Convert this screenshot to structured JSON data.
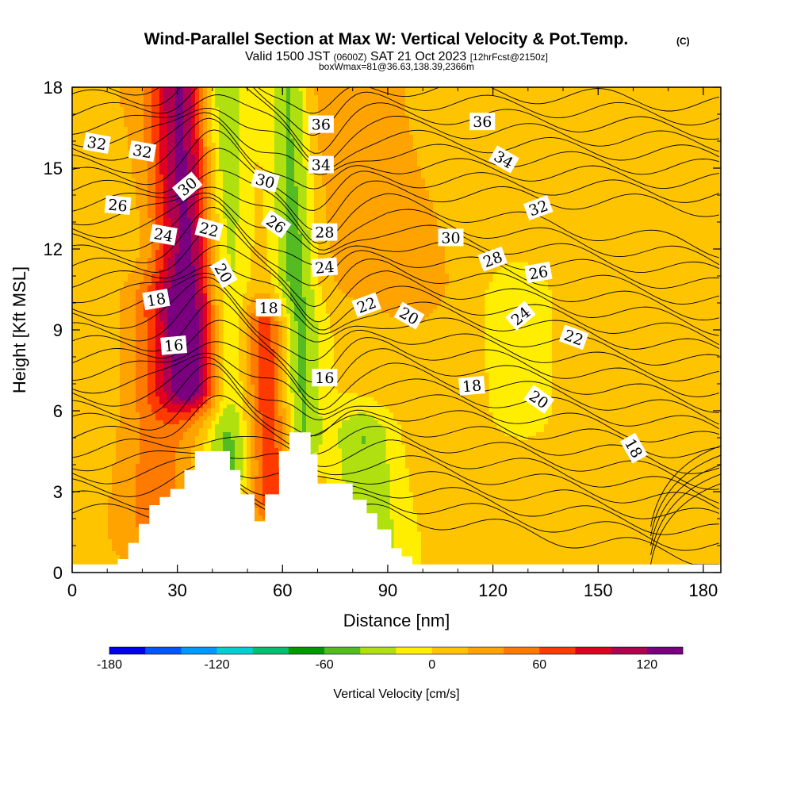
{
  "chart_data": {
    "type": "heatmap",
    "title": "Wind-Parallel Section at Max W: Vertical Velocity & Pot.Temp.",
    "title_mark": "(C)",
    "subtitle_parts": [
      "Valid 1500 JST",
      "(0600Z)",
      "SAT 21 Oct 2023",
      "[12hrFcst@2150z]"
    ],
    "subtitle2": "boxWmax=81@36.63,138.39,2366m",
    "xlabel": "Distance [nm]",
    "ylabel": "Height [Kft MSL]",
    "xlim": [
      0,
      185
    ],
    "ylim": [
      0,
      18
    ],
    "x_ticks": [
      "0",
      "30",
      "60",
      "90",
      "120",
      "150",
      "180"
    ],
    "y_ticks": [
      "0",
      "3",
      "6",
      "9",
      "12",
      "15",
      "18"
    ],
    "colorbar": {
      "label": "Vertical Velocity [cm/s]",
      "tick_labels": [
        "-180",
        "-120",
        "-60",
        "0",
        "60",
        "120"
      ],
      "tick_values": [
        -180,
        -120,
        -60,
        0,
        60,
        120
      ],
      "range": [
        -180,
        140
      ],
      "interval": 20,
      "colors": [
        "#0000ee",
        "#0055ff",
        "#0099ff",
        "#00d0d0",
        "#00c070",
        "#009a00",
        "#55bb22",
        "#b0e010",
        "#ffee00",
        "#ffc400",
        "#ffa300",
        "#ff7a00",
        "#ff3a00",
        "#e00020",
        "#b00050",
        "#7a0080"
      ]
    },
    "velocity_features": [
      {
        "x_center": 34,
        "x_width": 9,
        "w": 120,
        "z_range": [
          7,
          18
        ]
      },
      {
        "x_center": 45,
        "x_width": 7,
        "w": -60,
        "z_range": [
          4,
          18
        ]
      },
      {
        "x_center": 57,
        "x_width": 7,
        "w": 70,
        "z_range": [
          3,
          9
        ]
      },
      {
        "x_center": 65,
        "x_width": 6,
        "w": -60,
        "z_range": [
          5,
          18
        ]
      },
      {
        "x_center": 84,
        "x_width": 9,
        "w": -50,
        "z_range": [
          1,
          5
        ]
      },
      {
        "x_center": 128,
        "x_width": 9,
        "w": -20,
        "z_range": [
          6,
          10
        ]
      },
      {
        "x_center": 25,
        "x_width": 10,
        "w": 40,
        "z_range": [
          2,
          10
        ]
      },
      {
        "x_center": 85,
        "x_width": 18,
        "w": 25,
        "z_range": [
          11,
          18
        ]
      }
    ],
    "terrain": [
      [
        0,
        0.3
      ],
      [
        13,
        0.3
      ],
      [
        13,
        0.5
      ],
      [
        16,
        0.5
      ],
      [
        16,
        1.1
      ],
      [
        19,
        1.1
      ],
      [
        19,
        1.8
      ],
      [
        22,
        1.8
      ],
      [
        22,
        2.5
      ],
      [
        25,
        2.5
      ],
      [
        25,
        2.8
      ],
      [
        28,
        2.8
      ],
      [
        28,
        3.1
      ],
      [
        32,
        3.1
      ],
      [
        32,
        3.8
      ],
      [
        35,
        3.8
      ],
      [
        35,
        4.5
      ],
      [
        45,
        4.5
      ],
      [
        45,
        3.8
      ],
      [
        48,
        3.8
      ],
      [
        48,
        2.9
      ],
      [
        52,
        2.9
      ],
      [
        52,
        1.9
      ],
      [
        55,
        1.9
      ],
      [
        55,
        2.9
      ],
      [
        59,
        2.9
      ],
      [
        59,
        4.5
      ],
      [
        62,
        4.5
      ],
      [
        62,
        5.2
      ],
      [
        68,
        5.2
      ],
      [
        68,
        4.4
      ],
      [
        70,
        4.4
      ],
      [
        70,
        3.3
      ],
      [
        80,
        3.3
      ],
      [
        80,
        2.7
      ],
      [
        84,
        2.7
      ],
      [
        84,
        2.2
      ],
      [
        87,
        2.2
      ],
      [
        87,
        1.6
      ],
      [
        91,
        1.6
      ],
      [
        91,
        0.9
      ],
      [
        94,
        0.9
      ],
      [
        94,
        0.6
      ],
      [
        97,
        0.6
      ],
      [
        97,
        0.3
      ],
      [
        185,
        0.3
      ]
    ],
    "contour_labels": [
      {
        "text": "32",
        "x": 7,
        "z": 15.9,
        "rot": 10
      },
      {
        "text": "32",
        "x": 20,
        "z": 15.6,
        "rot": 10
      },
      {
        "text": "30",
        "x": 33,
        "z": 14.3,
        "rot": -40
      },
      {
        "text": "26",
        "x": 13,
        "z": 13.6,
        "rot": 5
      },
      {
        "text": "24",
        "x": 26,
        "z": 12.5,
        "rot": 10
      },
      {
        "text": "22",
        "x": 39,
        "z": 12.7,
        "rot": 15
      },
      {
        "text": "20",
        "x": 43,
        "z": 11.1,
        "rot": 60
      },
      {
        "text": "18",
        "x": 24,
        "z": 10.1,
        "rot": -10
      },
      {
        "text": "16",
        "x": 29,
        "z": 8.4,
        "rot": -5
      },
      {
        "text": "30",
        "x": 55,
        "z": 14.5,
        "rot": 15
      },
      {
        "text": "26",
        "x": 58,
        "z": 12.9,
        "rot": 35
      },
      {
        "text": "18",
        "x": 56,
        "z": 9.8,
        "rot": 0
      },
      {
        "text": "36",
        "x": 71,
        "z": 16.6,
        "rot": 0
      },
      {
        "text": "34",
        "x": 71,
        "z": 15.1,
        "rot": 0
      },
      {
        "text": "28",
        "x": 72,
        "z": 12.6,
        "rot": 0
      },
      {
        "text": "24",
        "x": 72,
        "z": 11.3,
        "rot": -5
      },
      {
        "text": "16",
        "x": 72,
        "z": 7.2,
        "rot": 0
      },
      {
        "text": "22",
        "x": 84,
        "z": 9.9,
        "rot": -20
      },
      {
        "text": "20",
        "x": 96,
        "z": 9.5,
        "rot": 30
      },
      {
        "text": "30",
        "x": 108,
        "z": 12.4,
        "rot": 0
      },
      {
        "text": "36",
        "x": 117,
        "z": 16.7,
        "rot": 0
      },
      {
        "text": "34",
        "x": 123,
        "z": 15.3,
        "rot": 30
      },
      {
        "text": "32",
        "x": 133,
        "z": 13.5,
        "rot": -20
      },
      {
        "text": "28",
        "x": 120,
        "z": 11.6,
        "rot": -20
      },
      {
        "text": "26",
        "x": 133,
        "z": 11.1,
        "rot": -10
      },
      {
        "text": "24",
        "x": 128,
        "z": 9.5,
        "rot": -40
      },
      {
        "text": "22",
        "x": 143,
        "z": 8.7,
        "rot": 20
      },
      {
        "text": "18",
        "x": 114,
        "z": 6.9,
        "rot": -5
      },
      {
        "text": "20",
        "x": 133,
        "z": 6.4,
        "rot": 35
      },
      {
        "text": "18",
        "x": 160,
        "z": 4.6,
        "rot": 60
      }
    ]
  }
}
